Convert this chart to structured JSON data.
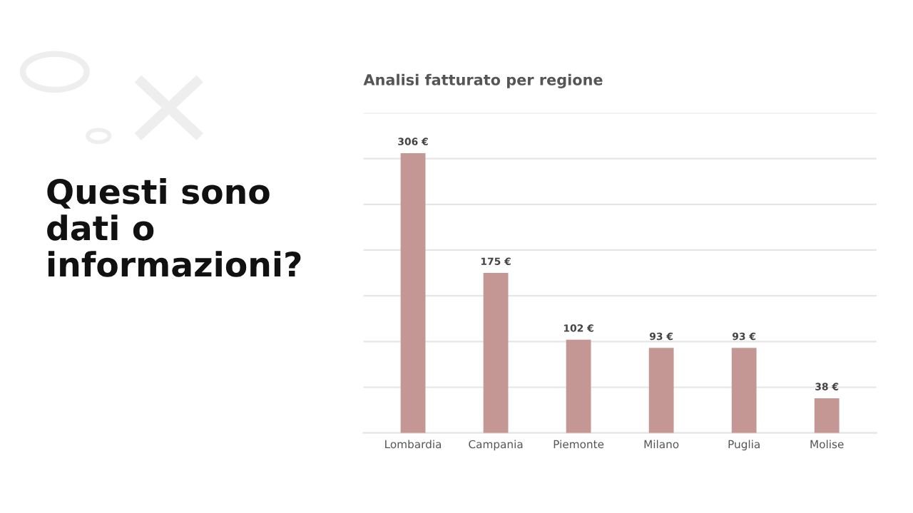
{
  "chart_data": {
    "type": "bar",
    "title": "Analisi fatturato per regione",
    "categories": [
      "Lombardia",
      "Campania",
      "Piemonte",
      "Milano",
      "Puglia",
      "Molise"
    ],
    "values": [
      306,
      175,
      102,
      93,
      93,
      38
    ],
    "value_labels": [
      "306 €",
      "175 €",
      "102 €",
      "93 €",
      "93 €",
      "38 €"
    ],
    "color": "#c49794",
    "ylim": [
      0,
      350
    ],
    "yticks": [
      {
        "value": 0,
        "label": null
      },
      {
        "value": 50,
        "label": null
      },
      {
        "value": 100,
        "label": null
      },
      {
        "value": 150,
        "label": null
      },
      {
        "value": 200,
        "label": null
      },
      {
        "value": 250,
        "label": null
      },
      {
        "value": 300,
        "label": null
      },
      {
        "value": 350,
        "label": null
      }
    ],
    "grid": "y",
    "tick_labels": "x",
    "annotations": [
      "Questi sono\ndati o\ninformazioni?"
    ]
  }
}
